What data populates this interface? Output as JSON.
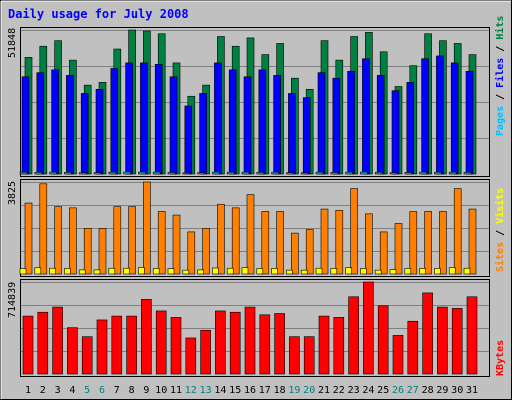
{
  "chart_data": [
    {
      "type": "bar",
      "panel": "hits-files-pages",
      "title": "Daily usage for July 2008",
      "ylabel_parts": [
        "Pages",
        " / ",
        "Files",
        " / ",
        "Hits"
      ],
      "ylabel_colors": [
        "#00c0ff",
        "#000000",
        "#0000ff",
        "#000000",
        "#008040"
      ],
      "ymax_label": "51848",
      "ylim": [
        0,
        51848
      ],
      "categories": [
        "1",
        "2",
        "3",
        "4",
        "5",
        "6",
        "7",
        "8",
        "9",
        "10",
        "11",
        "12",
        "13",
        "14",
        "15",
        "16",
        "17",
        "18",
        "19",
        "20",
        "21",
        "22",
        "23",
        "24",
        "25",
        "26",
        "27",
        "28",
        "29",
        "30",
        "31"
      ],
      "weekend_days": [
        "5",
        "6",
        "12",
        "13",
        "19",
        "20",
        "26",
        "27"
      ],
      "series": [
        {
          "name": "Hits",
          "color": "#008040",
          "values": [
            42000,
            46000,
            48000,
            41000,
            32000,
            33000,
            45000,
            51848,
            51500,
            50500,
            40000,
            28000,
            32000,
            49500,
            46000,
            49000,
            43000,
            47000,
            34500,
            30500,
            48000,
            41000,
            49500,
            51000,
            44000,
            31500,
            39000,
            50500,
            48000,
            47000,
            43000
          ]
        },
        {
          "name": "Files",
          "color": "#0000ff",
          "values": [
            35000,
            36500,
            37500,
            35500,
            29000,
            30500,
            38000,
            40000,
            40000,
            39500,
            35000,
            24500,
            29000,
            40000,
            37500,
            35000,
            37500,
            35500,
            29000,
            27500,
            36500,
            34500,
            37000,
            41500,
            35500,
            30000,
            33000,
            41500,
            42500,
            40000,
            37000
          ]
        },
        {
          "name": "Pages",
          "color": "#00c0ff",
          "values": [
            600,
            620,
            650,
            580,
            450,
            470,
            630,
            700,
            690,
            680,
            560,
            400,
            440,
            670,
            640,
            660,
            590,
            640,
            480,
            430,
            650,
            560,
            670,
            700,
            600,
            440,
            540,
            680,
            650,
            640,
            590
          ]
        }
      ]
    },
    {
      "type": "bar",
      "panel": "visits-sites",
      "ylabel_parts": [
        "Sites",
        " / ",
        "Visits"
      ],
      "ylabel_colors": [
        "#ff8000",
        "#000000",
        "#ffff00"
      ],
      "ymax_label": "3825",
      "ylim": [
        0,
        3825
      ],
      "series": [
        {
          "name": "Visits",
          "color": "#ff8000",
          "values": [
            2950,
            3750,
            2800,
            2750,
            1900,
            1900,
            2800,
            2800,
            3825,
            2600,
            2450,
            1750,
            1900,
            2900,
            2750,
            3300,
            2600,
            2600,
            1700,
            1850,
            2700,
            2650,
            3550,
            2500,
            1750,
            2100,
            2600,
            2600,
            2600,
            3550,
            2700
          ]
        },
        {
          "name": "Sites",
          "color": "#ffff00",
          "values": [
            220,
            260,
            240,
            230,
            170,
            170,
            240,
            240,
            270,
            230,
            220,
            160,
            170,
            250,
            240,
            260,
            230,
            230,
            160,
            160,
            240,
            230,
            260,
            230,
            160,
            180,
            230,
            230,
            230,
            260,
            240
          ]
        }
      ]
    },
    {
      "type": "bar",
      "panel": "kbytes",
      "ylabel_parts": [
        "KBytes"
      ],
      "ylabel_colors": [
        "#ff0000"
      ],
      "ymax_label": "714839",
      "ylim": [
        0,
        714839
      ],
      "series": [
        {
          "name": "KBytes",
          "color": "#ff0000",
          "values": [
            450000,
            480000,
            520000,
            360000,
            290000,
            420000,
            450000,
            450000,
            580000,
            490000,
            440000,
            280000,
            340000,
            490000,
            480000,
            520000,
            460000,
            470000,
            290000,
            290000,
            450000,
            440000,
            600000,
            714839,
            530000,
            300000,
            410000,
            630000,
            520000,
            510000,
            600000
          ]
        }
      ]
    }
  ]
}
